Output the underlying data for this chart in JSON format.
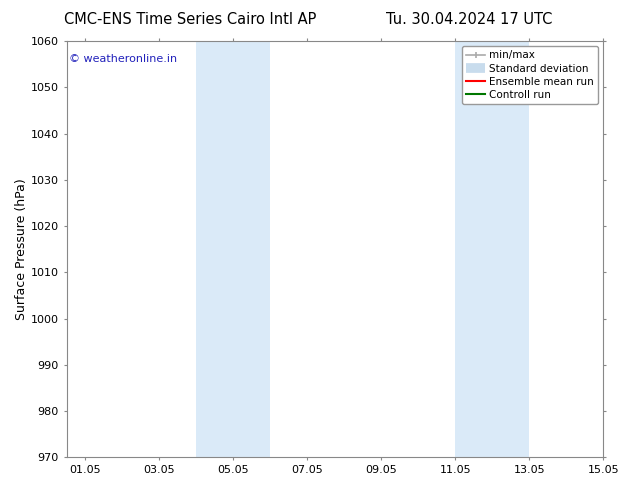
{
  "title_left": "CMC-ENS Time Series Cairo Intl AP",
  "title_right": "Tu. 30.04.2024 17 UTC",
  "ylabel": "Surface Pressure (hPa)",
  "ylim": [
    970,
    1060
  ],
  "yticks": [
    970,
    980,
    990,
    1000,
    1010,
    1020,
    1030,
    1040,
    1050,
    1060
  ],
  "xlim_start": 0.0,
  "xlim_end": 14.5,
  "xtick_labels": [
    "01.05",
    "03.05",
    "05.05",
    "07.05",
    "09.05",
    "11.05",
    "13.05",
    "15.05"
  ],
  "xtick_positions": [
    0.5,
    2.5,
    4.5,
    6.5,
    8.5,
    10.5,
    12.5,
    14.5
  ],
  "shaded_regions": [
    {
      "xstart": 3.5,
      "xend": 5.5
    },
    {
      "xstart": 10.5,
      "xend": 12.5
    }
  ],
  "shaded_color": "#daeaf8",
  "watermark_text": "© weatheronline.in",
  "watermark_color": "#2222bb",
  "background_color": "#ffffff",
  "plot_bg_color": "#ffffff",
  "spine_color": "#888888",
  "tick_color": "#444444",
  "legend_items": [
    {
      "label": "min/max",
      "color": "#aaaaaa",
      "lw": 1.5
    },
    {
      "label": "Standard deviation",
      "color": "#c8dced",
      "lw": 7
    },
    {
      "label": "Ensemble mean run",
      "color": "#ff0000",
      "lw": 1.5
    },
    {
      "label": "Controll run",
      "color": "#007700",
      "lw": 1.5
    }
  ],
  "title_fontsize": 10.5,
  "ylabel_fontsize": 9,
  "tick_fontsize": 8,
  "legend_fontsize": 7.5,
  "watermark_fontsize": 8
}
